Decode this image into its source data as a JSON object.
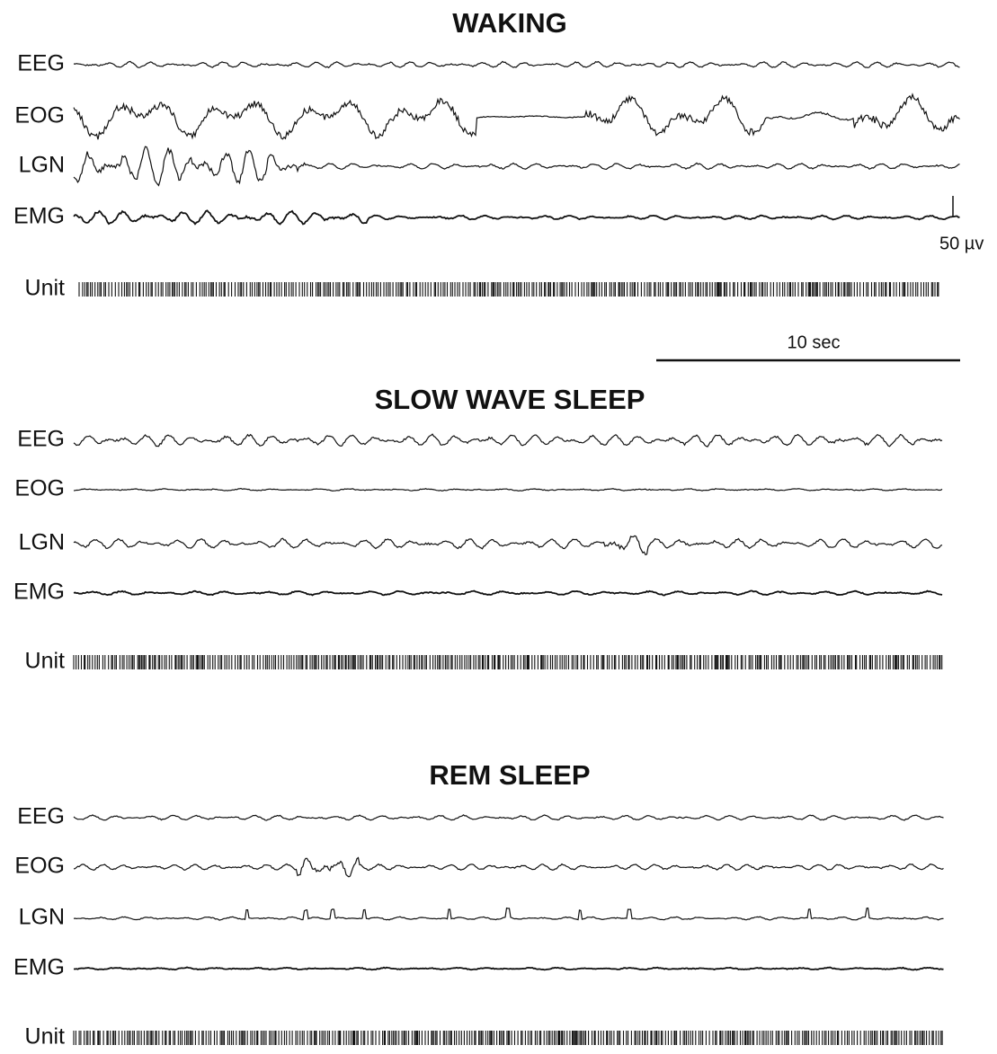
{
  "panels": [
    {
      "title": "WAKING",
      "channels": [
        "EEG",
        "EOG",
        "LGN",
        "EMG",
        "Unit"
      ]
    },
    {
      "title": "SLOW WAVE SLEEP",
      "channels": [
        "EEG",
        "EOG",
        "LGN",
        "EMG",
        "Unit"
      ]
    },
    {
      "title": "REM SLEEP",
      "channels": [
        "EEG",
        "EOG",
        "LGN",
        "EMG",
        "Unit"
      ]
    }
  ],
  "scale": {
    "amplitude": "50 µv",
    "time": "10 sec"
  }
}
